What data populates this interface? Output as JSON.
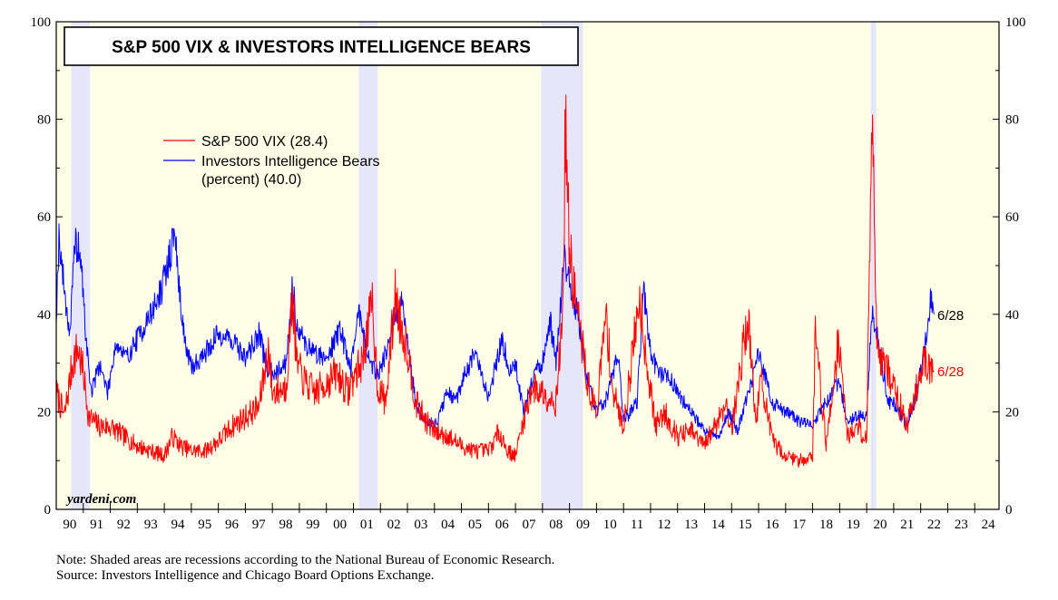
{
  "chart_data": {
    "type": "line",
    "title": "S&P 500 VIX & INVESTORS INTELLIGENCE BEARS",
    "watermark": "yardeni.com",
    "xlabel": "",
    "ylabel": "",
    "ylim": [
      0,
      100
    ],
    "xlim": [
      1990,
      2024.9
    ],
    "y_ticks": [
      0,
      20,
      40,
      60,
      80,
      100
    ],
    "x_tick_labels": [
      "90",
      "91",
      "92",
      "93",
      "94",
      "95",
      "96",
      "97",
      "98",
      "99",
      "00",
      "01",
      "02",
      "03",
      "04",
      "05",
      "06",
      "07",
      "08",
      "09",
      "10",
      "11",
      "12",
      "13",
      "14",
      "15",
      "16",
      "17",
      "18",
      "19",
      "20",
      "21",
      "22",
      "23",
      "24"
    ],
    "recessions": [
      [
        1990.55,
        1991.25
      ],
      [
        2001.2,
        2001.9
      ],
      [
        2007.95,
        2009.5
      ],
      [
        2020.15,
        2020.35
      ]
    ],
    "series": [
      {
        "name": "S&P 500 VIX",
        "legend": "S&P 500 VIX (28.4)",
        "color": "#ff0000",
        "end_label": "6/28",
        "points": [
          [
            1990.0,
            24
          ],
          [
            1990.3,
            19
          ],
          [
            1990.6,
            30
          ],
          [
            1990.8,
            33
          ],
          [
            1991.0,
            28
          ],
          [
            1991.2,
            19
          ],
          [
            1991.6,
            17
          ],
          [
            1992.0,
            17
          ],
          [
            1992.5,
            15
          ],
          [
            1993.0,
            13
          ],
          [
            1993.5,
            12
          ],
          [
            1994.0,
            11
          ],
          [
            1994.3,
            15
          ],
          [
            1994.6,
            13
          ],
          [
            1995.0,
            12
          ],
          [
            1995.5,
            12
          ],
          [
            1996.0,
            14
          ],
          [
            1996.5,
            17
          ],
          [
            1997.0,
            19
          ],
          [
            1997.5,
            21
          ],
          [
            1997.85,
            33
          ],
          [
            1998.0,
            24
          ],
          [
            1998.5,
            25
          ],
          [
            1998.75,
            44
          ],
          [
            1998.9,
            30
          ],
          [
            1999.2,
            26
          ],
          [
            1999.6,
            24
          ],
          [
            2000.0,
            26
          ],
          [
            2000.4,
            28
          ],
          [
            2000.8,
            24
          ],
          [
            2001.0,
            27
          ],
          [
            2001.3,
            30
          ],
          [
            2001.7,
            42
          ],
          [
            2001.9,
            25
          ],
          [
            2002.2,
            22
          ],
          [
            2002.55,
            44
          ],
          [
            2002.75,
            38
          ],
          [
            2003.0,
            33
          ],
          [
            2003.3,
            22
          ],
          [
            2003.7,
            18
          ],
          [
            2004.0,
            16
          ],
          [
            2004.5,
            15
          ],
          [
            2005.0,
            13
          ],
          [
            2005.5,
            12
          ],
          [
            2006.0,
            12
          ],
          [
            2006.4,
            16
          ],
          [
            2006.7,
            12
          ],
          [
            2007.0,
            11
          ],
          [
            2007.2,
            16
          ],
          [
            2007.6,
            25
          ],
          [
            2008.0,
            24
          ],
          [
            2008.5,
            22
          ],
          [
            2008.75,
            40
          ],
          [
            2008.85,
            80
          ],
          [
            2009.0,
            52
          ],
          [
            2009.3,
            40
          ],
          [
            2009.7,
            25
          ],
          [
            2010.0,
            20
          ],
          [
            2010.35,
            40
          ],
          [
            2010.6,
            24
          ],
          [
            2011.0,
            17
          ],
          [
            2011.6,
            44
          ],
          [
            2011.9,
            28
          ],
          [
            2012.2,
            17
          ],
          [
            2012.5,
            20
          ],
          [
            2013.0,
            15
          ],
          [
            2013.5,
            16
          ],
          [
            2014.0,
            13
          ],
          [
            2014.8,
            22
          ],
          [
            2015.0,
            16
          ],
          [
            2015.6,
            40
          ],
          [
            2015.9,
            18
          ],
          [
            2016.1,
            27
          ],
          [
            2016.5,
            14
          ],
          [
            2017.0,
            11
          ],
          [
            2017.5,
            10
          ],
          [
            2018.0,
            11
          ],
          [
            2018.1,
            37
          ],
          [
            2018.5,
            13
          ],
          [
            2018.95,
            35
          ],
          [
            2019.3,
            15
          ],
          [
            2019.7,
            17
          ],
          [
            2020.0,
            14
          ],
          [
            2020.2,
            82
          ],
          [
            2020.4,
            33
          ],
          [
            2020.8,
            28
          ],
          [
            2021.0,
            25
          ],
          [
            2021.5,
            17
          ],
          [
            2021.9,
            26
          ],
          [
            2022.1,
            32
          ],
          [
            2022.3,
            28
          ],
          [
            2022.49,
            28.4
          ]
        ]
      },
      {
        "name": "Investors Intelligence Bears (percent)",
        "legend": "Investors Intelligence Bears",
        "legend_line2": "(percent) (40.0)",
        "color": "#0000ff",
        "end_label": "6/28",
        "points": [
          [
            1990.0,
            40
          ],
          [
            1990.1,
            56
          ],
          [
            1990.3,
            45
          ],
          [
            1990.5,
            36
          ],
          [
            1990.7,
            55
          ],
          [
            1990.9,
            52
          ],
          [
            1991.1,
            35
          ],
          [
            1991.3,
            24
          ],
          [
            1991.6,
            30
          ],
          [
            1991.9,
            24
          ],
          [
            1992.2,
            34
          ],
          [
            1992.6,
            31
          ],
          [
            1993.0,
            35
          ],
          [
            1993.5,
            40
          ],
          [
            1993.9,
            45
          ],
          [
            1994.2,
            52
          ],
          [
            1994.4,
            57
          ],
          [
            1994.55,
            45
          ],
          [
            1994.8,
            33
          ],
          [
            1995.0,
            29
          ],
          [
            1995.5,
            32
          ],
          [
            1996.0,
            36
          ],
          [
            1996.5,
            35
          ],
          [
            1997.0,
            31
          ],
          [
            1997.5,
            36
          ],
          [
            1997.8,
            29
          ],
          [
            1998.0,
            28
          ],
          [
            1998.5,
            30
          ],
          [
            1998.75,
            46
          ],
          [
            1998.9,
            38
          ],
          [
            1999.2,
            34
          ],
          [
            1999.6,
            32
          ],
          [
            2000.0,
            31
          ],
          [
            2000.5,
            37
          ],
          [
            2000.9,
            29
          ],
          [
            2001.2,
            41
          ],
          [
            2001.6,
            30
          ],
          [
            2001.9,
            28
          ],
          [
            2002.2,
            32
          ],
          [
            2002.5,
            39
          ],
          [
            2002.8,
            42
          ],
          [
            2003.0,
            35
          ],
          [
            2003.3,
            22
          ],
          [
            2003.6,
            19
          ],
          [
            2004.0,
            17
          ],
          [
            2004.5,
            24
          ],
          [
            2004.8,
            22
          ],
          [
            2005.0,
            26
          ],
          [
            2005.5,
            32
          ],
          [
            2006.0,
            23
          ],
          [
            2006.5,
            35
          ],
          [
            2006.8,
            28
          ],
          [
            2007.0,
            30
          ],
          [
            2007.3,
            20
          ],
          [
            2007.7,
            28
          ],
          [
            2008.0,
            30
          ],
          [
            2008.3,
            38
          ],
          [
            2008.5,
            30
          ],
          [
            2008.8,
            52
          ],
          [
            2009.0,
            46
          ],
          [
            2009.3,
            40
          ],
          [
            2009.6,
            28
          ],
          [
            2010.0,
            20
          ],
          [
            2010.4,
            23
          ],
          [
            2010.8,
            32
          ],
          [
            2011.0,
            18
          ],
          [
            2011.5,
            22
          ],
          [
            2011.75,
            45
          ],
          [
            2012.0,
            32
          ],
          [
            2012.3,
            28
          ],
          [
            2012.7,
            27
          ],
          [
            2013.0,
            24
          ],
          [
            2013.5,
            20
          ],
          [
            2014.0,
            16
          ],
          [
            2014.5,
            15
          ],
          [
            2014.9,
            20
          ],
          [
            2015.2,
            16
          ],
          [
            2015.7,
            25
          ],
          [
            2016.0,
            32
          ],
          [
            2016.5,
            22
          ],
          [
            2017.0,
            20
          ],
          [
            2017.5,
            18
          ],
          [
            2018.0,
            17
          ],
          [
            2018.4,
            21
          ],
          [
            2018.95,
            26
          ],
          [
            2019.3,
            18
          ],
          [
            2019.7,
            19
          ],
          [
            2020.0,
            19
          ],
          [
            2020.2,
            41
          ],
          [
            2020.5,
            32
          ],
          [
            2020.8,
            22
          ],
          [
            2021.0,
            22
          ],
          [
            2021.5,
            17
          ],
          [
            2021.9,
            25
          ],
          [
            2022.2,
            36
          ],
          [
            2022.4,
            44
          ],
          [
            2022.49,
            40
          ]
        ]
      }
    ]
  },
  "notes": {
    "line1": "Note: Shaded areas are recessions according to the National Bureau of Economic Research.",
    "line2": "Source: Investors Intelligence and Chicago Board Options Exchange."
  },
  "colors": {
    "plot_background": "#ffffe8",
    "recession_shade": "#e6e6fa",
    "vix_line": "#ff0000",
    "bears_line": "#0000ff"
  }
}
